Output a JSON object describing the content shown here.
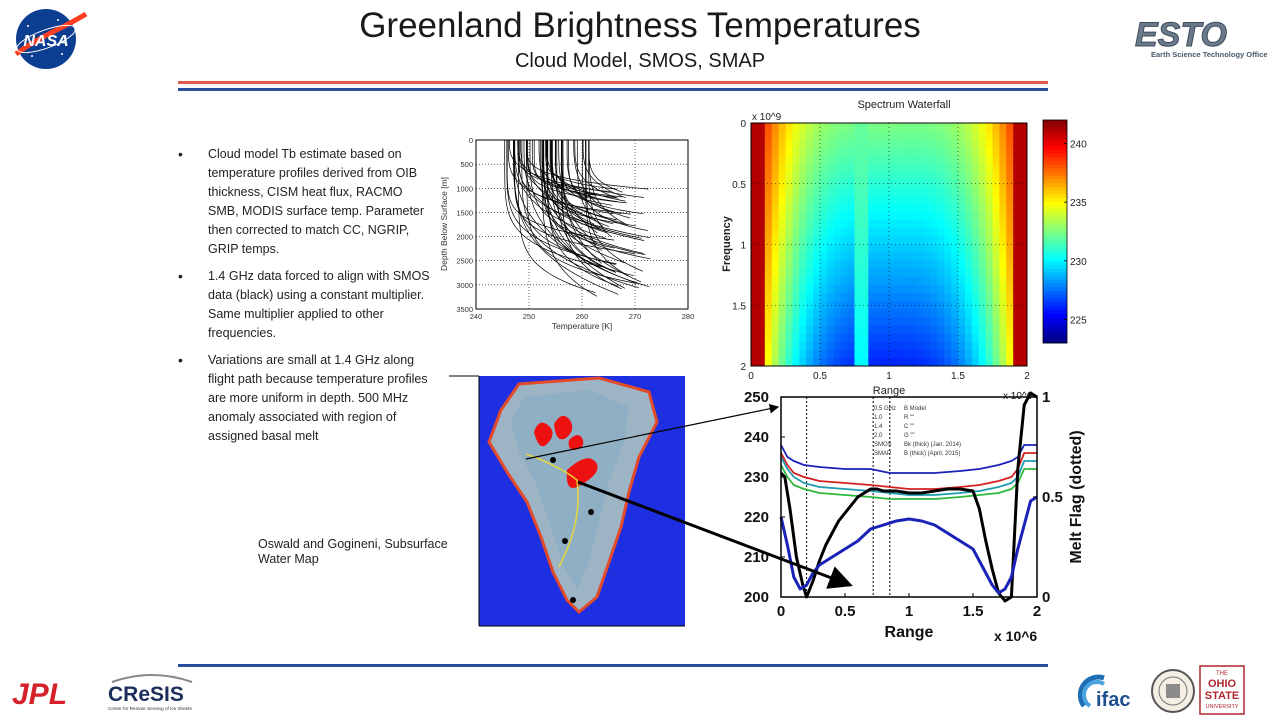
{
  "header": {
    "title": "Greenland Brightness Temperatures",
    "subtitle": "Cloud Model, SMOS, SMAP",
    "rule_colors": [
      "#e05a4c",
      "#2b4fa0"
    ]
  },
  "bullets": [
    "Cloud model Tb estimate based on temperature profiles derived from OIB thickness, CISM heat flux, RACMO SMB, MODIS surface temp. Parameter then corrected to match CC, NGRIP, GRIP temps.",
    "1.4 GHz data forced to align with SMOS data (black) using a constant multiplier.  Same multiplier applied to other frequencies.",
    "Variations are small at 1.4 GHz along flight path because temperature profiles are more uniform in depth. 500  MHz anomaly associated with region of assigned basal melt"
  ],
  "caption": "Oswald and Gogineni, Subsurface Water Map",
  "logos": {
    "nasa": "NASA",
    "esto": "ESTO",
    "esto_sub": "Earth Science Technology Office",
    "jpl": "JPL",
    "cresis": "CReSIS",
    "cresis_sub": "Center for Remote Sensing of Ice Sheets",
    "ifac": "ifac",
    "osu_top": "THE",
    "osu_1": "OHIO",
    "osu_2": "STATE",
    "osu_3": "UNIVERSITY"
  },
  "chart_data": [
    {
      "type": "line",
      "name": "temperature-profiles",
      "xlabel": "Temperature [K]",
      "ylabel": "Depth Below Surface [m]",
      "xlim": [
        240,
        280
      ],
      "ylim": [
        3500,
        0
      ],
      "xticks": [
        "240",
        "250",
        "260",
        "270",
        "280"
      ],
      "yticks": [
        "0",
        "500",
        "1000",
        "1500",
        "2000",
        "2500",
        "3000",
        "3500"
      ],
      "grid": true,
      "profiles": 70,
      "surface_temp_range": [
        245,
        262
      ],
      "basal_temp_range": [
        262,
        273
      ]
    },
    {
      "type": "heatmap",
      "title": "Spectrum Waterfall",
      "xlabel": "Range",
      "ylabel": "Frequency",
      "x_exponent": "",
      "y_exponent": "x 10^9",
      "xlim": [
        0,
        2
      ],
      "ylim": [
        0,
        2
      ],
      "xticks": [
        "0",
        "0.5",
        "1",
        "1.5",
        "2"
      ],
      "yticks": [
        "0",
        "0.5",
        "1",
        "1.5",
        "2"
      ],
      "colorbar": {
        "ticks": [
          "225",
          "230",
          "235",
          "240"
        ],
        "range": [
          223,
          242
        ]
      }
    },
    {
      "type": "line",
      "xlabel": "Range",
      "x_exponent": "x 10^6",
      "ylabel_right": "Melt Flag (dotted)",
      "right_exponent": "x 10^6",
      "xlim": [
        0,
        2
      ],
      "ylim": [
        200,
        250
      ],
      "ylim_right": [
        0,
        1
      ],
      "xticks": [
        "0",
        "0.5",
        "1",
        "1.5",
        "2"
      ],
      "yticks": [
        "200",
        "210",
        "220",
        "230",
        "240",
        "250"
      ],
      "yticks_right": [
        "0",
        "0.5",
        "1"
      ],
      "legend": [
        {
          "code": "0.5 GHz",
          "desc": "B Model"
        },
        {
          "code": "1.0",
          "desc": "R \"\""
        },
        {
          "code": "1.4",
          "desc": "C \"\""
        },
        {
          "code": "2.0",
          "desc": "G \"\""
        },
        {
          "code": "SMOS",
          "desc": "Bk (thick) (Jan. 2014)"
        },
        {
          "code": "SMAP",
          "desc": "B (thick) (April, 2015)"
        }
      ],
      "melt_flag_x": [
        0.2,
        0.72,
        0.85
      ],
      "series": [
        {
          "color": "#1a22b8",
          "x": [
            0,
            0.05,
            0.1,
            0.18,
            0.3,
            0.5,
            0.7,
            0.85,
            1.0,
            1.2,
            1.4,
            1.55,
            1.7,
            1.8,
            1.85,
            1.9,
            2.0
          ],
          "values": [
            238,
            235,
            234,
            233,
            232.5,
            232,
            232,
            231,
            231,
            231,
            231.5,
            232,
            233,
            234,
            235,
            238,
            238
          ]
        },
        {
          "color": "#d42020",
          "x": [
            0,
            0.05,
            0.1,
            0.18,
            0.3,
            0.5,
            0.7,
            0.85,
            1.0,
            1.2,
            1.4,
            1.55,
            1.7,
            1.8,
            1.85,
            1.9,
            2.0
          ],
          "values": [
            236,
            233,
            231,
            230,
            229,
            228.5,
            228,
            227.5,
            227,
            227,
            227.5,
            228,
            229,
            230,
            232,
            236,
            236
          ]
        },
        {
          "color": "#1f9bb0",
          "x": [
            0,
            0.05,
            0.1,
            0.18,
            0.3,
            0.5,
            0.7,
            0.85,
            1.0,
            1.2,
            1.4,
            1.55,
            1.7,
            1.8,
            1.85,
            1.9,
            2.0
          ],
          "values": [
            235,
            232,
            230,
            228.5,
            227.5,
            227,
            226.5,
            226,
            225.5,
            225.5,
            226,
            226.5,
            227.5,
            228.5,
            230,
            234,
            234
          ]
        },
        {
          "color": "#2db83a",
          "x": [
            0,
            0.05,
            0.1,
            0.18,
            0.3,
            0.5,
            0.7,
            0.85,
            1.0,
            1.2,
            1.4,
            1.55,
            1.7,
            1.8,
            1.85,
            1.9,
            2.0
          ],
          "values": [
            233,
            230,
            228,
            227,
            226,
            225.5,
            225,
            224.5,
            224.5,
            224.5,
            225,
            225.5,
            226,
            227,
            228.5,
            232,
            232
          ]
        },
        {
          "color": "#000000",
          "thick": true,
          "x": [
            0,
            0.03,
            0.07,
            0.12,
            0.17,
            0.2,
            0.25,
            0.3,
            0.35,
            0.4,
            0.45,
            0.5,
            0.55,
            0.6,
            0.65,
            0.7,
            0.75,
            0.8,
            0.9,
            1.0,
            1.1,
            1.2,
            1.3,
            1.4,
            1.5,
            1.55,
            1.6,
            1.65,
            1.7,
            1.75,
            1.8,
            1.85,
            1.9,
            1.95,
            2.0
          ],
          "values": [
            231,
            230,
            222,
            210,
            203,
            200,
            204,
            209,
            213,
            216,
            219,
            221,
            223,
            225,
            226,
            227,
            227,
            226.5,
            226.5,
            226,
            226,
            226.5,
            227,
            227,
            226.5,
            222,
            214,
            207,
            201,
            199,
            200,
            232,
            248,
            251,
            250
          ]
        },
        {
          "color": "#1a22b8",
          "thick": true,
          "x": [
            0,
            0.05,
            0.1,
            0.15,
            0.2,
            0.25,
            0.3,
            0.4,
            0.5,
            0.6,
            0.7,
            0.8,
            0.9,
            1.0,
            1.1,
            1.2,
            1.3,
            1.4,
            1.5,
            1.55,
            1.6,
            1.65,
            1.7,
            1.75,
            1.8,
            1.85,
            1.9,
            1.95,
            2.0
          ],
          "values": [
            220,
            213,
            205,
            202,
            203,
            206,
            208,
            210,
            212,
            214,
            217,
            218,
            219,
            219.5,
            219,
            218,
            216,
            214,
            212,
            209,
            206,
            203,
            201,
            202,
            205,
            212,
            218,
            224,
            225
          ]
        }
      ]
    }
  ]
}
